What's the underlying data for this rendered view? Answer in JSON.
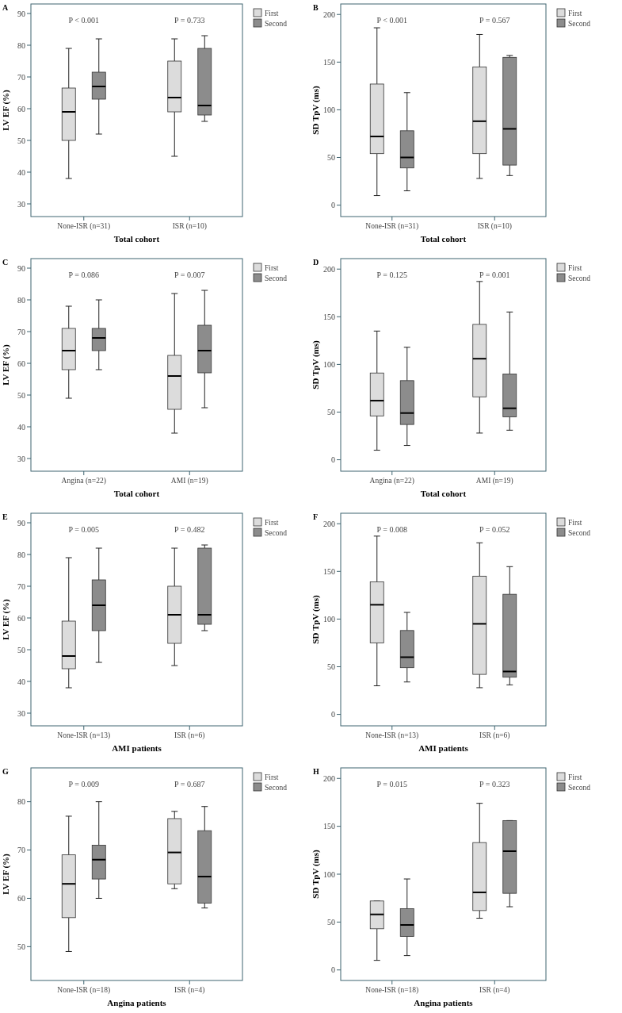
{
  "chart_data": [
    {
      "type": "box",
      "title": "A",
      "xlabel": "Total cohort",
      "ylabel": "LV EF (%)",
      "categories": [
        "None-ISR (n=31)",
        "ISR (n=10)"
      ],
      "ylim": [
        26,
        93
      ],
      "yticks": [
        30,
        40,
        50,
        60,
        70,
        80,
        90
      ],
      "legend": "top right",
      "series": [
        {
          "name": "First",
          "color": "#dcdcdc",
          "boxes": [
            {
              "low": 38,
              "q1": 50,
              "median": 59,
              "q3": 66.5,
              "high": 79
            },
            {
              "low": 45,
              "q1": 59,
              "median": 63.5,
              "q3": 75,
              "high": 82
            }
          ]
        },
        {
          "name": "Second",
          "color": "#8c8c8c",
          "boxes": [
            {
              "low": 52,
              "q1": 63,
              "median": 67,
              "q3": 71.5,
              "high": 82
            },
            {
              "low": 56,
              "q1": 58,
              "median": 61,
              "q3": 79,
              "high": 83
            }
          ]
        }
      ],
      "annotations": [
        "P < 0.001",
        "P = 0.733"
      ]
    },
    {
      "type": "box",
      "title": "B",
      "xlabel": "Total cohort",
      "ylabel": "SD TpV (ms)",
      "categories": [
        "None-ISR (n=31)",
        "ISR (n=10)"
      ],
      "ylim": [
        -12,
        211
      ],
      "yticks": [
        0,
        50,
        100,
        150,
        200
      ],
      "legend": "top right",
      "series": [
        {
          "name": "First",
          "color": "#dcdcdc",
          "boxes": [
            {
              "low": 10,
              "q1": 54,
              "median": 72,
              "q3": 127,
              "high": 186
            },
            {
              "low": 28,
              "q1": 54,
              "median": 88,
              "q3": 145,
              "high": 179
            }
          ]
        },
        {
          "name": "Second",
          "color": "#8c8c8c",
          "boxes": [
            {
              "low": 15,
              "q1": 39,
              "median": 50,
              "q3": 78,
              "high": 118
            },
            {
              "low": 31,
              "q1": 42,
              "median": 80,
              "q3": 155,
              "high": 157
            }
          ]
        }
      ],
      "annotations": [
        "P < 0.001",
        "P = 0.567"
      ]
    },
    {
      "type": "box",
      "title": "C",
      "xlabel": "Total cohort",
      "ylabel": "LV EF (%)",
      "categories": [
        "Angina (n=22)",
        "AMI (n=19)"
      ],
      "ylim": [
        26,
        93
      ],
      "yticks": [
        30,
        40,
        50,
        60,
        70,
        80,
        90
      ],
      "legend": "top right",
      "series": [
        {
          "name": "First",
          "color": "#dcdcdc",
          "boxes": [
            {
              "low": 49,
              "q1": 58,
              "median": 64,
              "q3": 71,
              "high": 78
            },
            {
              "low": 38,
              "q1": 45.5,
              "median": 56,
              "q3": 62.5,
              "high": 82
            }
          ]
        },
        {
          "name": "Second",
          "color": "#8c8c8c",
          "boxes": [
            {
              "low": 58,
              "q1": 64,
              "median": 68,
              "q3": 71,
              "high": 80
            },
            {
              "low": 46,
              "q1": 57,
              "median": 64,
              "q3": 72,
              "high": 83
            }
          ]
        }
      ],
      "annotations": [
        "P = 0.086",
        "P = 0.007"
      ]
    },
    {
      "type": "box",
      "title": "D",
      "xlabel": "Total cohort",
      "ylabel": "SD TpV (ms)",
      "categories": [
        "Angina (n=22)",
        "AMI (n=19)"
      ],
      "ylim": [
        -12,
        211
      ],
      "yticks": [
        0,
        50,
        100,
        150,
        200
      ],
      "legend": "top right",
      "series": [
        {
          "name": "First",
          "color": "#dcdcdc",
          "boxes": [
            {
              "low": 10,
              "q1": 46,
              "median": 62,
              "q3": 91,
              "high": 135
            },
            {
              "low": 28,
              "q1": 66,
              "median": 106,
              "q3": 142,
              "high": 187
            }
          ]
        },
        {
          "name": "Second",
          "color": "#8c8c8c",
          "boxes": [
            {
              "low": 15,
              "q1": 37,
              "median": 49,
              "q3": 83,
              "high": 118
            },
            {
              "low": 31,
              "q1": 45,
              "median": 54,
              "q3": 90,
              "high": 155
            }
          ]
        }
      ],
      "annotations": [
        "P = 0.125",
        "P = 0.001"
      ]
    },
    {
      "type": "box",
      "title": "E",
      "xlabel": "AMI patients",
      "ylabel": "LV EF (%)",
      "categories": [
        "None-ISR (n=13)",
        "ISR (n=6)"
      ],
      "ylim": [
        26,
        93
      ],
      "yticks": [
        30,
        40,
        50,
        60,
        70,
        80,
        90
      ],
      "legend": "top right",
      "series": [
        {
          "name": "First",
          "color": "#dcdcdc",
          "boxes": [
            {
              "low": 38,
              "q1": 44,
              "median": 48,
              "q3": 59,
              "high": 79
            },
            {
              "low": 45,
              "q1": 52,
              "median": 61,
              "q3": 70,
              "high": 82
            }
          ]
        },
        {
          "name": "Second",
          "color": "#8c8c8c",
          "boxes": [
            {
              "low": 46,
              "q1": 56,
              "median": 64,
              "q3": 72,
              "high": 82
            },
            {
              "low": 56,
              "q1": 58,
              "median": 61,
              "q3": 82,
              "high": 83
            }
          ]
        }
      ],
      "annotations": [
        "P = 0.005",
        "P = 0.482"
      ]
    },
    {
      "type": "box",
      "title": "F",
      "xlabel": "AMI patients",
      "ylabel": "SD TpV (ms)",
      "categories": [
        "None-ISR (n=13)",
        "ISR (n=6)"
      ],
      "ylim": [
        -12,
        211
      ],
      "yticks": [
        0,
        50,
        100,
        150,
        200
      ],
      "legend": "top right",
      "series": [
        {
          "name": "First",
          "color": "#dcdcdc",
          "boxes": [
            {
              "low": 30,
              "q1": 75,
              "median": 115,
              "q3": 139,
              "high": 187
            },
            {
              "low": 28,
              "q1": 42,
              "median": 95,
              "q3": 145,
              "high": 180
            }
          ]
        },
        {
          "name": "Second",
          "color": "#8c8c8c",
          "boxes": [
            {
              "low": 34,
              "q1": 49,
              "median": 60,
              "q3": 88,
              "high": 107
            },
            {
              "low": 31,
              "q1": 39,
              "median": 45,
              "q3": 126,
              "high": 155
            }
          ]
        }
      ],
      "annotations": [
        "P = 0.008",
        "P = 0.052"
      ]
    },
    {
      "type": "box",
      "title": "G",
      "xlabel": "Angina patients",
      "ylabel": "LV EF (%)",
      "categories": [
        "None-ISR (n=18)",
        "ISR (n=4)"
      ],
      "ylim": [
        43,
        87
      ],
      "yticks": [
        50,
        60,
        70,
        80
      ],
      "legend": "top right",
      "series": [
        {
          "name": "First",
          "color": "#dcdcdc",
          "boxes": [
            {
              "low": 49,
              "q1": 56,
              "median": 63,
              "q3": 69,
              "high": 77
            },
            {
              "low": 62,
              "q1": 63,
              "median": 69.5,
              "q3": 76.5,
              "high": 78
            }
          ]
        },
        {
          "name": "Second",
          "color": "#8c8c8c",
          "boxes": [
            {
              "low": 60,
              "q1": 64,
              "median": 68,
              "q3": 71,
              "high": 80
            },
            {
              "low": 58,
              "q1": 59,
              "median": 64.5,
              "q3": 74,
              "high": 79
            }
          ]
        }
      ],
      "annotations": [
        "P = 0.009",
        "P = 0.687"
      ]
    },
    {
      "type": "box",
      "title": "H",
      "xlabel": "Angina patients",
      "ylabel": "SD TpV (ms)",
      "categories": [
        "None-ISR (n=18)",
        "ISR (n=4)"
      ],
      "ylim": [
        -11,
        211
      ],
      "yticks": [
        0,
        50,
        100,
        150,
        200
      ],
      "legend": "top right",
      "series": [
        {
          "name": "First",
          "color": "#dcdcdc",
          "boxes": [
            {
              "low": 10,
              "q1": 43,
              "median": 58,
              "q3": 72,
              "high": 72
            },
            {
              "low": 54,
              "q1": 62,
              "median": 81,
              "q3": 133,
              "high": 174
            }
          ]
        },
        {
          "name": "Second",
          "color": "#8c8c8c",
          "boxes": [
            {
              "low": 15,
              "q1": 35,
              "median": 47,
              "q3": 64,
              "high": 95
            },
            {
              "low": 66,
              "q1": 80,
              "median": 124,
              "q3": 156,
              "high": 156
            }
          ]
        }
      ],
      "annotations": [
        "P = 0.015",
        "P = 0.323"
      ]
    }
  ]
}
